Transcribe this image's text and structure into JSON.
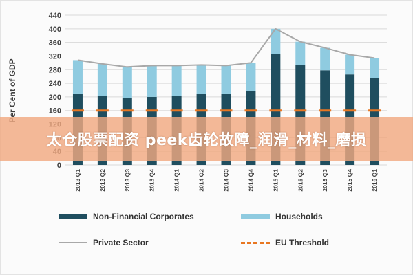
{
  "chart_data": {
    "type": "bar",
    "stacked": true,
    "ylabel": "Per Cent of GDP",
    "ylim": [
      0,
      440
    ],
    "yticks": [
      0,
      40,
      80,
      120,
      160,
      200,
      240,
      280,
      320,
      360,
      400,
      440
    ],
    "grid": true,
    "legend_position": "bottom",
    "categories": [
      "2013 Q1",
      "2013 Q2",
      "2013 Q3",
      "2013 Q4",
      "2014 Q1",
      "2014 Q2",
      "2014 Q3",
      "2014 Q4",
      "2015 Q1",
      "2015 Q2",
      "2015 Q3",
      "2015 Q4",
      "2016 Q1"
    ],
    "series": [
      {
        "name": "Non-Financial Corporates",
        "kind": "bar",
        "color": "#1f4e5f",
        "values": [
          210,
          202,
          197,
          200,
          202,
          208,
          210,
          218,
          326,
          294,
          278,
          266,
          256
        ]
      },
      {
        "name": "Households",
        "kind": "bar",
        "color": "#8fcbe0",
        "values": [
          98,
          95,
          91,
          92,
          90,
          86,
          82,
          82,
          74,
          68,
          66,
          58,
          58
        ]
      },
      {
        "name": "Private Sector",
        "kind": "line",
        "color": "#a8a8a8",
        "values": [
          308,
          297,
          288,
          292,
          292,
          294,
          292,
          300,
          400,
          362,
          344,
          324,
          314
        ]
      },
      {
        "name": "EU Threshold",
        "kind": "dashed-line",
        "color": "#e87722",
        "values": [
          160,
          160,
          160,
          160,
          160,
          160,
          160,
          160,
          160,
          160,
          160,
          160,
          160
        ]
      }
    ]
  },
  "overlay": {
    "banner_text": "太仓股票配资 peek齿轮故障_润滑_材料_磨损"
  },
  "legend": {
    "items": [
      {
        "label": "Non-Financial Corporates"
      },
      {
        "label": "Households"
      },
      {
        "label": "Private Sector"
      },
      {
        "label": "EU Threshold"
      }
    ]
  }
}
